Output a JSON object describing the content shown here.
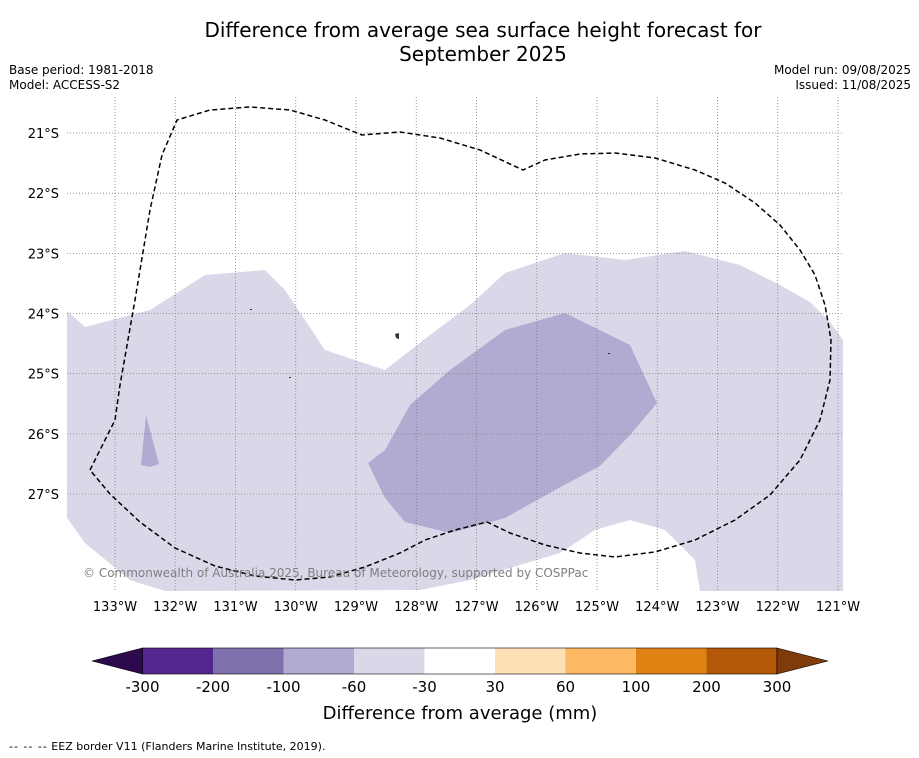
{
  "header": {
    "title_line1": "Difference from average sea surface height forecast for",
    "title_line2": "September 2025",
    "base_period": "Base period: 1981-2018",
    "model": "Model: ACCESS-S2",
    "model_run": "Model run: 09/08/2025",
    "issued": "Issued: 11/08/2025"
  },
  "map": {
    "lon_labels": [
      "133°W",
      "132°W",
      "131°W",
      "130°W",
      "129°W",
      "128°W",
      "127°W",
      "126°W",
      "125°W",
      "124°W",
      "123°W",
      "122°W",
      "121°W"
    ],
    "lat_labels": [
      "21°S",
      "22°S",
      "23°S",
      "24°S",
      "25°S",
      "26°S",
      "27°S"
    ],
    "copyright": "© Commonwealth of Australia 2025, Bureau of Meteorology, supported by COSPPac",
    "colors": {
      "band_neg60_neg30": "#d9d8e9",
      "band_neg100_neg60": "#b1abd1",
      "eez_line": "#000000",
      "grid": "#7f7f7f"
    }
  },
  "colorbar": {
    "tick_labels": [
      "-300",
      "-200",
      "-100",
      "-60",
      "-30",
      "30",
      "60",
      "100",
      "200",
      "300"
    ],
    "label": "Difference from average (mm)",
    "colors": [
      "#2d0a4e",
      "#54278f",
      "#7f71ad",
      "#b1abd1",
      "#d9d8e9",
      "#ffffff",
      "#fee0b6",
      "#fdb863",
      "#e08214",
      "#b35806",
      "#7f3b08"
    ]
  },
  "footnote": {
    "dashes": "--  --  --",
    "text": " EEZ border V11 (Flanders Marine Institute, 2019)."
  }
}
